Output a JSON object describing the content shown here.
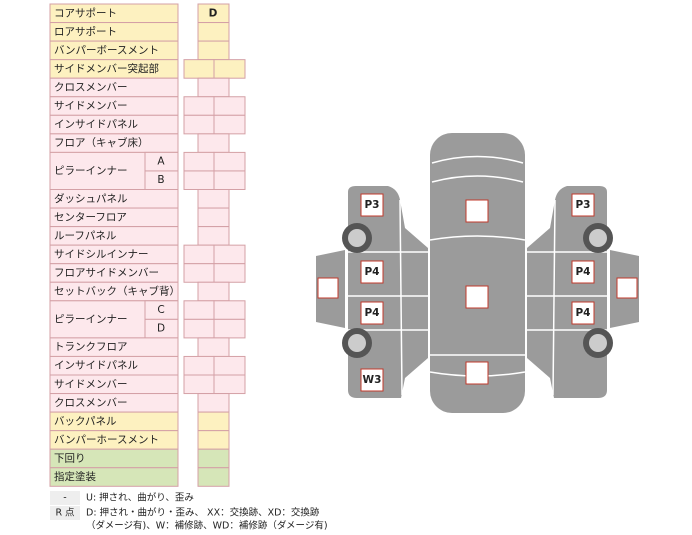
{
  "table": {
    "rows": [
      {
        "label": "コアサポート",
        "color": "#fdf1c0",
        "cells": 1,
        "mark": "D"
      },
      {
        "label": "ロアサポート",
        "color": "#fdf1c0",
        "cells": 1
      },
      {
        "label": "バンパーボースメント",
        "color": "#fdf1c0",
        "cells": 1
      },
      {
        "label": "サイドメンバー突起部",
        "color": "#fdf1c0",
        "cells": 2
      },
      {
        "label": "クロスメンバー",
        "color": "#fde8ec",
        "cells": 1
      },
      {
        "label": "サイドメンバー",
        "color": "#fde8ec",
        "cells": 2
      },
      {
        "label": "インサイドパネル",
        "color": "#fde8ec",
        "cells": 2
      },
      {
        "label": "フロア（キャブ床）",
        "color": "#fde8ec",
        "cells": 1
      },
      {
        "label": "ピラーインナー",
        "color": "#fde8ec",
        "cells": 2,
        "subs": [
          "A",
          "B"
        ]
      },
      {
        "label": "ダッシュパネル",
        "color": "#fde8ec",
        "cells": 1
      },
      {
        "label": "センターフロア",
        "color": "#fde8ec",
        "cells": 1
      },
      {
        "label": "ルーフパネル",
        "color": "#fde8ec",
        "cells": 1
      },
      {
        "label": "サイドシルインナー",
        "color": "#fde8ec",
        "cells": 2
      },
      {
        "label": "フロアサイドメンバー",
        "color": "#fde8ec",
        "cells": 2
      },
      {
        "label": "セットバック（キャブ背）",
        "color": "#fde8ec",
        "cells": 1
      },
      {
        "label": "ピラーインナー",
        "color": "#fde8ec",
        "cells": 2,
        "subs": [
          "C",
          "D"
        ]
      },
      {
        "label": "トランクフロア",
        "color": "#fde8ec",
        "cells": 1
      },
      {
        "label": "インサイドパネル",
        "color": "#fde8ec",
        "cells": 2
      },
      {
        "label": "サイドメンバー",
        "color": "#fde8ec",
        "cells": 2
      },
      {
        "label": "クロスメンバー",
        "color": "#fde8ec",
        "cells": 1
      },
      {
        "label": "バックパネル",
        "color": "#fdf1c0",
        "cells": 1
      },
      {
        "label": "バンパーホースメント",
        "color": "#fdf1c0",
        "cells": 1
      },
      {
        "label": "下回り",
        "color": "#d6e6b8",
        "cells": 1
      },
      {
        "label": "指定塗装",
        "color": "#d6e6b8",
        "cells": 1
      }
    ]
  },
  "legend": [
    {
      "key": "-",
      "lines": [
        "U: 押され、曲がり、歪み"
      ]
    },
    {
      "key": "R 点",
      "lines": [
        "D: 押され・曲がり・歪み、 XX：交換跡、XD：交換跡",
        "（ダメージ有)、W：補修跡、WD：補修跡（ダメージ有)"
      ]
    }
  ],
  "car": {
    "left_labels": [
      "P3",
      "P4",
      "P4",
      "W3"
    ],
    "right_labels": [
      "P3",
      "P4",
      "P4"
    ]
  }
}
